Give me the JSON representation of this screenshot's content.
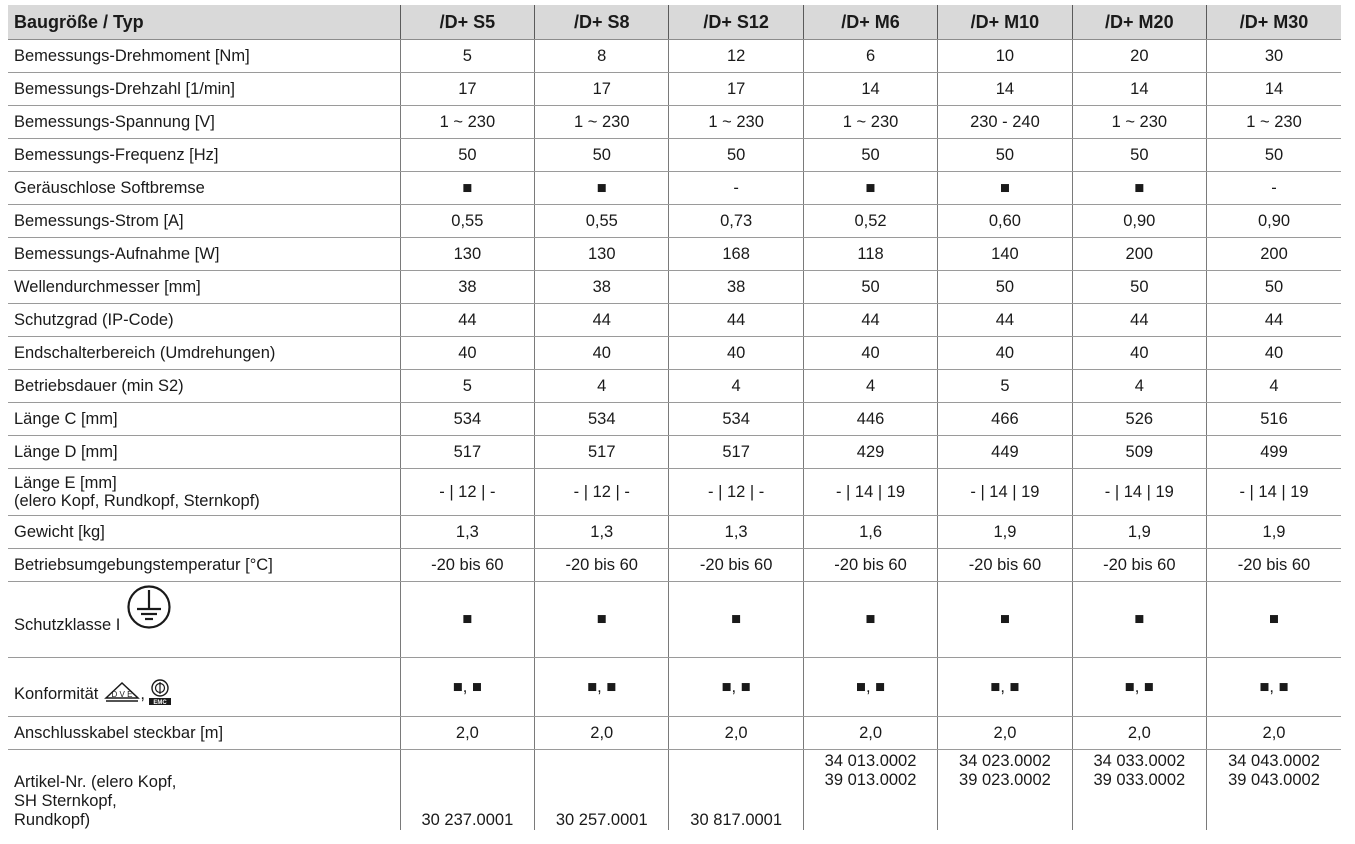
{
  "table": {
    "header": [
      "Baugröße / Typ",
      "/D+ S5",
      "/D+ S8",
      "/D+ S12",
      "/D+ M6",
      "/D+ M10",
      "/D+ M20",
      "/D+ M30"
    ],
    "rows": [
      {
        "label": "Bemessungs-Drehmoment [Nm]",
        "values": [
          "5",
          "8",
          "12",
          "6",
          "10",
          "20",
          "30"
        ]
      },
      {
        "label": "Bemessungs-Drehzahl [1/min]",
        "values": [
          "17",
          "17",
          "17",
          "14",
          "14",
          "14",
          "14"
        ]
      },
      {
        "label": "Bemessungs-Spannung [V]",
        "values": [
          "1 ~ 230",
          "1 ~ 230",
          "1 ~ 230",
          "1 ~ 230",
          "230 - 240",
          "1 ~ 230",
          "1 ~ 230"
        ]
      },
      {
        "label": "Bemessungs-Frequenz [Hz]",
        "values": [
          "50",
          "50",
          "50",
          "50",
          "50",
          "50",
          "50"
        ]
      },
      {
        "label": "Geräuschlose Softbremse",
        "values": [
          "■",
          "■",
          "-",
          "■",
          "■",
          "■",
          "-"
        ]
      },
      {
        "label": "Bemessungs-Strom [A]",
        "values": [
          "0,55",
          "0,55",
          "0,73",
          "0,52",
          "0,60",
          "0,90",
          "0,90"
        ]
      },
      {
        "label": "Bemessungs-Aufnahme [W]",
        "values": [
          "130",
          "130",
          "168",
          "118",
          "140",
          "200",
          "200"
        ]
      },
      {
        "label": "Wellendurchmesser [mm]",
        "values": [
          "38",
          "38",
          "38",
          "50",
          "50",
          "50",
          "50"
        ]
      },
      {
        "label": "Schutzgrad (IP-Code)",
        "values": [
          "44",
          "44",
          "44",
          "44",
          "44",
          "44",
          "44"
        ]
      },
      {
        "label": "Endschalterbereich (Umdrehungen)",
        "values": [
          "40",
          "40",
          "40",
          "40",
          "40",
          "40",
          "40"
        ]
      },
      {
        "label": "Betriebsdauer (min S2)",
        "values": [
          "5",
          "4",
          "4",
          "4",
          "5",
          "4",
          "4"
        ]
      },
      {
        "label": "Länge C [mm]",
        "values": [
          "534",
          "534",
          "534",
          "446",
          "466",
          "526",
          "516"
        ]
      },
      {
        "label": "Länge D [mm]",
        "values": [
          "517",
          "517",
          "517",
          "429",
          "449",
          "509",
          "499"
        ]
      }
    ],
    "laenge_e": {
      "label_line1": "Länge E [mm]",
      "label_line2": "(elero Kopf, Rundkopf, Sternkopf)",
      "values": [
        "- | 12 | -",
        "- | 12 | -",
        "- | 12 | -",
        "- | 14 | 19",
        "- | 14 | 19",
        "- | 14 | 19",
        "- | 14 | 19"
      ]
    },
    "rows2": [
      {
        "label": "Gewicht [kg]",
        "values": [
          "1,3",
          "1,3",
          "1,3",
          "1,6",
          "1,9",
          "1,9",
          "1,9"
        ]
      },
      {
        "label": "Betriebsumgebungstemperatur [°C]",
        "values": [
          "-20 bis 60",
          "-20 bis 60",
          "-20 bis 60",
          "-20 bis 60",
          "-20 bis 60",
          "-20 bis 60",
          "-20 bis 60"
        ]
      }
    ],
    "schutzklasse": {
      "label": "Schutzklasse I",
      "icon": "protective-earth-icon",
      "values": [
        "■",
        "■",
        "■",
        "■",
        "■",
        "■",
        "■"
      ]
    },
    "konformitaet": {
      "label": "Konformität",
      "separator": ",",
      "icons": [
        "vde-mark-icon",
        "vde-emc-mark-icon"
      ],
      "vde_text": "D V E",
      "emc_text": "EMC",
      "values": [
        "■, ■",
        "■, ■",
        "■, ■",
        "■, ■",
        "■, ■",
        "■, ■",
        "■, ■"
      ]
    },
    "anschluss": {
      "label": "Anschlusskabel steckbar [m]",
      "values": [
        "2,0",
        "2,0",
        "2,0",
        "2,0",
        "2,0",
        "2,0",
        "2,0"
      ]
    },
    "artikel": {
      "label_lines": [
        "Artikel-Nr. (elero Kopf,",
        "SH Sternkopf,",
        "Rundkopf)"
      ],
      "values": [
        {
          "line1": "30 237.0001",
          "line2": ""
        },
        {
          "line1": "30 257.0001",
          "line2": ""
        },
        {
          "line1": "30 817.0001",
          "line2": ""
        },
        {
          "line1": "34 013.0002",
          "line2": "39 013.0002"
        },
        {
          "line1": "34 023.0002",
          "line2": "39 023.0002"
        },
        {
          "line1": "34 033.0002",
          "line2": "39 033.0002"
        },
        {
          "line1": "34 043.0002",
          "line2": "39 043.0002"
        }
      ]
    },
    "colors": {
      "header_bg": "#d9d9d9",
      "grid": "#9a9a9a",
      "text": "#1a1a1a"
    }
  }
}
